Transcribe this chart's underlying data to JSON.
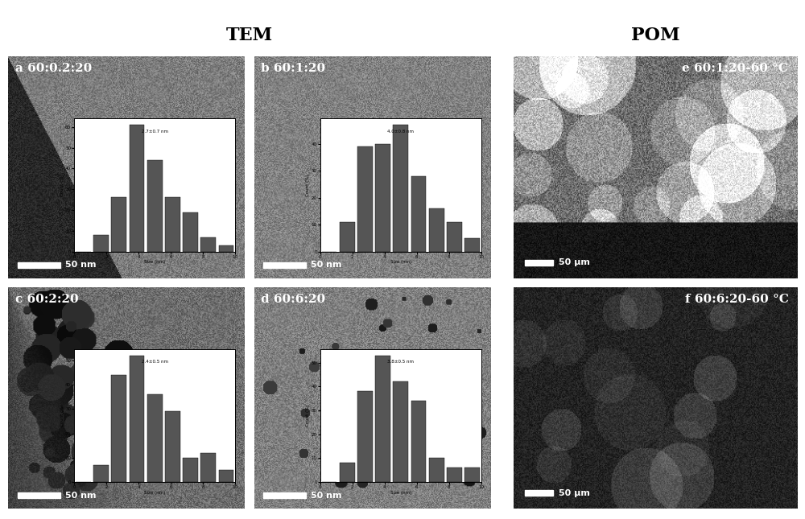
{
  "title_left": "TEM",
  "title_right": "POM",
  "background_color": "#ffffff",
  "outer_bg": "#e0e0e0",
  "panel_labels": [
    "a 60:0.2:20",
    "b 60:1:20",
    "c 60:2:20",
    "d 60:6:20",
    "e 60:1:20-60 °C",
    "f 60:6:20-60 °C"
  ],
  "scalebar_left": "50 nm",
  "scalebar_right": "50 μm",
  "tem_bg_color": "#888888",
  "pom_top_color": "#909090",
  "pom_bot_color": "#282828",
  "title_fontsize": 16,
  "label_fontsize": 11,
  "scalebar_fontsize": 9
}
